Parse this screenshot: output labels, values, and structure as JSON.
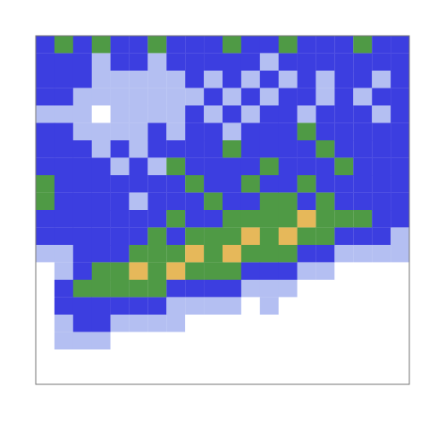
{
  "chart_data": {
    "type": "heatmap",
    "tick_labels": false,
    "zlim": [
      0,
      4
    ],
    "cells": [
      [
        2,
        3,
        2,
        3,
        2,
        2,
        3,
        2,
        2,
        2,
        3,
        2,
        2,
        3,
        2,
        2,
        2,
        3,
        2,
        2
      ],
      [
        2,
        2,
        2,
        1,
        2,
        2,
        1,
        2,
        2,
        2,
        2,
        2,
        1,
        2,
        2,
        2,
        2,
        2,
        2,
        2
      ],
      [
        2,
        2,
        2,
        1,
        1,
        1,
        1,
        1,
        2,
        1,
        2,
        1,
        2,
        1,
        2,
        1,
        2,
        2,
        1,
        2
      ],
      [
        2,
        2,
        1,
        1,
        1,
        1,
        1,
        1,
        1,
        2,
        1,
        2,
        1,
        2,
        2,
        1,
        2,
        1,
        2,
        2
      ],
      [
        1,
        1,
        1,
        0,
        1,
        1,
        1,
        1,
        2,
        1,
        2,
        1,
        2,
        2,
        1,
        2,
        2,
        2,
        1,
        2
      ],
      [
        2,
        2,
        1,
        1,
        1,
        1,
        2,
        1,
        2,
        2,
        1,
        2,
        2,
        2,
        3,
        2,
        2,
        2,
        2,
        2
      ],
      [
        2,
        2,
        2,
        1,
        2,
        1,
        2,
        2,
        2,
        2,
        3,
        2,
        2,
        2,
        2,
        3,
        2,
        2,
        2,
        2
      ],
      [
        2,
        2,
        2,
        2,
        1,
        2,
        1,
        3,
        2,
        2,
        2,
        2,
        3,
        2,
        2,
        2,
        3,
        2,
        2,
        2
      ],
      [
        3,
        2,
        2,
        2,
        2,
        2,
        2,
        2,
        3,
        2,
        2,
        3,
        2,
        2,
        3,
        2,
        2,
        2,
        2,
        2
      ],
      [
        3,
        2,
        2,
        2,
        2,
        1,
        2,
        2,
        2,
        3,
        2,
        2,
        3,
        3,
        2,
        3,
        2,
        2,
        2,
        2
      ],
      [
        2,
        2,
        2,
        2,
        2,
        2,
        2,
        3,
        2,
        2,
        3,
        3,
        3,
        3,
        4,
        3,
        3,
        3,
        2,
        2
      ],
      [
        2,
        2,
        2,
        2,
        2,
        2,
        3,
        2,
        3,
        3,
        3,
        4,
        3,
        4,
        3,
        3,
        2,
        2,
        2,
        1
      ],
      [
        1,
        1,
        2,
        2,
        2,
        3,
        3,
        3,
        4,
        3,
        4,
        3,
        3,
        3,
        2,
        2,
        1,
        1,
        1,
        1
      ],
      [
        0,
        1,
        2,
        3,
        3,
        4,
        3,
        4,
        3,
        3,
        3,
        2,
        2,
        2,
        1,
        1,
        0,
        0,
        0,
        0
      ],
      [
        0,
        2,
        3,
        3,
        3,
        3,
        3,
        2,
        2,
        2,
        2,
        1,
        1,
        1,
        0,
        0,
        0,
        0,
        0,
        0
      ],
      [
        0,
        2,
        2,
        2,
        2,
        2,
        2,
        1,
        1,
        1,
        1,
        0,
        1,
        0,
        0,
        0,
        0,
        0,
        0,
        0
      ],
      [
        0,
        1,
        2,
        2,
        1,
        1,
        1,
        1,
        0,
        0,
        0,
        0,
        0,
        0,
        0,
        0,
        0,
        0,
        0,
        0
      ],
      [
        0,
        1,
        1,
        1,
        0,
        0,
        0,
        0,
        0,
        0,
        0,
        0,
        0,
        0,
        0,
        0,
        0,
        0,
        0,
        0
      ],
      [
        0,
        0,
        0,
        0,
        0,
        0,
        0,
        0,
        0,
        0,
        0,
        0,
        0,
        0,
        0,
        0,
        0,
        0,
        0,
        0
      ],
      [
        0,
        0,
        0,
        0,
        0,
        0,
        0,
        0,
        0,
        0,
        0,
        0,
        0,
        0,
        0,
        0,
        0,
        0,
        0,
        0
      ]
    ]
  }
}
